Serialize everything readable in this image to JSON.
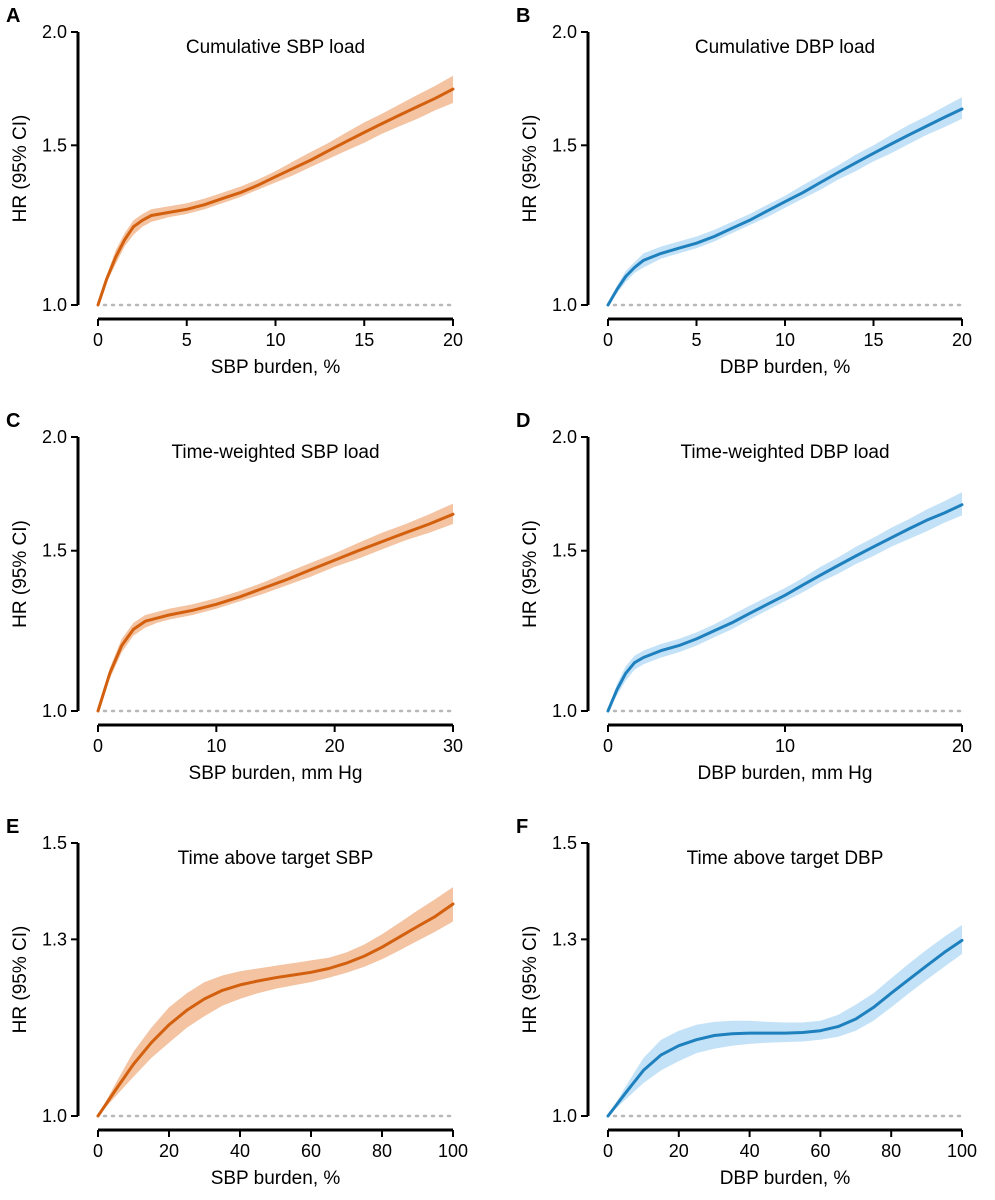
{
  "figure": {
    "colors": {
      "sbp_line": "#D2600F",
      "sbp_band": "#F4C3A1",
      "dbp_line": "#1F80BE",
      "dbp_band": "#C4E2F7",
      "ref_line": "#B8B8B8",
      "axis": "#000000"
    }
  },
  "chart_data": [
    {
      "panel": "A",
      "type": "line",
      "title": "Cumulative SBP load",
      "xlabel": "SBP burden, %",
      "ylabel": "HR (95% CI)",
      "xlim": [
        0,
        20
      ],
      "ylim": [
        1.0,
        2.0
      ],
      "xticks": [
        0,
        5,
        10,
        15,
        20
      ],
      "yticks": [
        1.0,
        1.5,
        2.0
      ],
      "ytick_labels": [
        "1.0",
        "1.5",
        "2.0"
      ],
      "yscale": "log",
      "reference_line": 1.0,
      "color": "sbp",
      "series": [
        {
          "name": "HR",
          "x": [
            0,
            0.5,
            1,
            1.5,
            2,
            2.5,
            3,
            4,
            5,
            6,
            7,
            8,
            9,
            10,
            11,
            12,
            13,
            14,
            15,
            16,
            17,
            18,
            19,
            20
          ],
          "y": [
            1.0,
            1.07,
            1.13,
            1.18,
            1.22,
            1.24,
            1.255,
            1.265,
            1.275,
            1.29,
            1.31,
            1.33,
            1.355,
            1.385,
            1.415,
            1.445,
            1.48,
            1.515,
            1.55,
            1.585,
            1.62,
            1.655,
            1.69,
            1.73
          ],
          "lower": [
            1.0,
            1.06,
            1.11,
            1.16,
            1.195,
            1.22,
            1.235,
            1.25,
            1.26,
            1.275,
            1.295,
            1.315,
            1.34,
            1.365,
            1.39,
            1.42,
            1.45,
            1.48,
            1.51,
            1.545,
            1.575,
            1.605,
            1.64,
            1.67
          ],
          "upper": [
            1.0,
            1.08,
            1.15,
            1.2,
            1.24,
            1.26,
            1.275,
            1.285,
            1.295,
            1.31,
            1.33,
            1.35,
            1.375,
            1.405,
            1.44,
            1.475,
            1.51,
            1.55,
            1.59,
            1.625,
            1.665,
            1.705,
            1.745,
            1.79
          ]
        }
      ]
    },
    {
      "panel": "B",
      "type": "line",
      "title": "Cumulative DBP load",
      "xlabel": "DBP burden, %",
      "ylabel": "HR (95% CI)",
      "xlim": [
        0,
        20
      ],
      "ylim": [
        1.0,
        2.0
      ],
      "xticks": [
        0,
        5,
        10,
        15,
        20
      ],
      "yticks": [
        1.0,
        1.5,
        2.0
      ],
      "ytick_labels": [
        "1.0",
        "1.5",
        "2.0"
      ],
      "yscale": "log",
      "reference_line": 1.0,
      "color": "dbp",
      "series": [
        {
          "name": "HR",
          "x": [
            0,
            0.5,
            1,
            1.5,
            2,
            3,
            4,
            5,
            6,
            7,
            8,
            9,
            10,
            11,
            12,
            13,
            14,
            15,
            16,
            17,
            18,
            19,
            20
          ],
          "y": [
            1.0,
            1.04,
            1.075,
            1.1,
            1.12,
            1.14,
            1.155,
            1.17,
            1.19,
            1.215,
            1.24,
            1.27,
            1.3,
            1.33,
            1.365,
            1.4,
            1.435,
            1.47,
            1.505,
            1.54,
            1.575,
            1.61,
            1.645
          ],
          "lower": [
            1.0,
            1.03,
            1.06,
            1.085,
            1.1,
            1.125,
            1.14,
            1.155,
            1.175,
            1.2,
            1.225,
            1.25,
            1.28,
            1.31,
            1.34,
            1.375,
            1.405,
            1.44,
            1.47,
            1.505,
            1.54,
            1.57,
            1.605
          ],
          "upper": [
            1.0,
            1.05,
            1.09,
            1.115,
            1.14,
            1.16,
            1.175,
            1.19,
            1.21,
            1.235,
            1.26,
            1.29,
            1.32,
            1.355,
            1.39,
            1.425,
            1.465,
            1.5,
            1.54,
            1.58,
            1.615,
            1.655,
            1.695
          ]
        }
      ]
    },
    {
      "panel": "C",
      "type": "line",
      "title": "Time-weighted SBP load",
      "xlabel": "SBP burden, mm Hg",
      "ylabel": "HR (95% CI)",
      "xlim": [
        0,
        30
      ],
      "ylim": [
        1.0,
        2.0
      ],
      "xticks": [
        0,
        10,
        20,
        30
      ],
      "yticks": [
        1.0,
        1.5,
        2.0
      ],
      "ytick_labels": [
        "1.0",
        "1.5",
        "2.0"
      ],
      "yscale": "log",
      "reference_line": 1.0,
      "color": "sbp",
      "series": [
        {
          "name": "HR",
          "x": [
            0,
            1,
            2,
            3,
            4,
            5,
            6,
            8,
            10,
            12,
            14,
            16,
            18,
            20,
            22,
            24,
            26,
            28,
            30
          ],
          "y": [
            1.0,
            1.1,
            1.18,
            1.23,
            1.255,
            1.265,
            1.275,
            1.29,
            1.31,
            1.335,
            1.365,
            1.395,
            1.43,
            1.465,
            1.5,
            1.535,
            1.57,
            1.605,
            1.645
          ],
          "lower": [
            1.0,
            1.085,
            1.16,
            1.21,
            1.235,
            1.25,
            1.26,
            1.275,
            1.295,
            1.32,
            1.345,
            1.375,
            1.405,
            1.44,
            1.47,
            1.505,
            1.54,
            1.57,
            1.605
          ],
          "upper": [
            1.0,
            1.115,
            1.2,
            1.25,
            1.275,
            1.285,
            1.295,
            1.31,
            1.33,
            1.355,
            1.385,
            1.42,
            1.455,
            1.49,
            1.53,
            1.57,
            1.605,
            1.645,
            1.69
          ]
        }
      ]
    },
    {
      "panel": "D",
      "type": "line",
      "title": "Time-weighted DBP load",
      "xlabel": "DBP burden, mm Hg",
      "ylabel": "HR (95% CI)",
      "xlim": [
        0,
        20
      ],
      "ylim": [
        1.0,
        2.0
      ],
      "xticks": [
        0,
        10,
        20
      ],
      "yticks": [
        1.0,
        1.5,
        2.0
      ],
      "ytick_labels": [
        "1.0",
        "1.5",
        "2.0"
      ],
      "yscale": "log",
      "reference_line": 1.0,
      "color": "dbp",
      "series": [
        {
          "name": "HR",
          "x": [
            0,
            0.5,
            1,
            1.5,
            2,
            3,
            4,
            5,
            6,
            7,
            8,
            9,
            10,
            11,
            12,
            13,
            14,
            15,
            16,
            17,
            18,
            19,
            20
          ],
          "y": [
            1.0,
            1.055,
            1.1,
            1.13,
            1.145,
            1.165,
            1.18,
            1.2,
            1.225,
            1.25,
            1.28,
            1.31,
            1.34,
            1.375,
            1.41,
            1.445,
            1.48,
            1.515,
            1.55,
            1.585,
            1.62,
            1.65,
            1.685
          ],
          "lower": [
            1.0,
            1.04,
            1.08,
            1.11,
            1.125,
            1.145,
            1.16,
            1.18,
            1.205,
            1.23,
            1.26,
            1.29,
            1.32,
            1.35,
            1.385,
            1.415,
            1.45,
            1.48,
            1.515,
            1.545,
            1.575,
            1.61,
            1.64
          ],
          "upper": [
            1.0,
            1.07,
            1.12,
            1.15,
            1.165,
            1.185,
            1.2,
            1.22,
            1.245,
            1.275,
            1.305,
            1.335,
            1.365,
            1.4,
            1.44,
            1.475,
            1.515,
            1.55,
            1.59,
            1.625,
            1.665,
            1.7,
            1.74
          ]
        }
      ]
    },
    {
      "panel": "E",
      "type": "line",
      "title": "Time above target SBP",
      "xlabel": "SBP burden, %",
      "ylabel": "HR (95% CI)",
      "xlim": [
        0,
        100
      ],
      "ylim": [
        1.0,
        1.5
      ],
      "xticks": [
        0,
        20,
        40,
        60,
        80,
        100
      ],
      "yticks": [
        1.0,
        1.3,
        1.5
      ],
      "ytick_labels": [
        "1.0",
        "1.3",
        "1.5"
      ],
      "yscale": "log",
      "reference_line": 1.0,
      "color": "sbp",
      "series": [
        {
          "name": "HR",
          "x": [
            0,
            5,
            10,
            15,
            20,
            25,
            30,
            35,
            40,
            45,
            50,
            55,
            60,
            65,
            70,
            75,
            80,
            85,
            90,
            95,
            100
          ],
          "y": [
            1.0,
            1.04,
            1.08,
            1.115,
            1.145,
            1.17,
            1.19,
            1.205,
            1.215,
            1.222,
            1.228,
            1.233,
            1.238,
            1.245,
            1.255,
            1.268,
            1.285,
            1.305,
            1.325,
            1.345,
            1.37
          ],
          "lower": [
            1.0,
            1.03,
            1.06,
            1.09,
            1.115,
            1.14,
            1.16,
            1.178,
            1.19,
            1.2,
            1.208,
            1.214,
            1.22,
            1.228,
            1.237,
            1.248,
            1.262,
            1.279,
            1.297,
            1.315,
            1.335
          ],
          "upper": [
            1.0,
            1.05,
            1.1,
            1.14,
            1.175,
            1.2,
            1.22,
            1.232,
            1.24,
            1.245,
            1.25,
            1.255,
            1.26,
            1.265,
            1.275,
            1.29,
            1.31,
            1.333,
            1.357,
            1.38,
            1.405
          ]
        }
      ]
    },
    {
      "panel": "F",
      "type": "line",
      "title": "Time above target DBP",
      "xlabel": "DBP burden, %",
      "ylabel": "HR (95% CI)",
      "xlim": [
        0,
        100
      ],
      "ylim": [
        1.0,
        1.5
      ],
      "xticks": [
        0,
        20,
        40,
        60,
        80,
        100
      ],
      "yticks": [
        1.0,
        1.3,
        1.5
      ],
      "ytick_labels": [
        "1.0",
        "1.3",
        "1.5"
      ],
      "yscale": "log",
      "reference_line": 1.0,
      "color": "dbp",
      "series": [
        {
          "name": "HR",
          "x": [
            0,
            5,
            10,
            15,
            20,
            25,
            30,
            35,
            40,
            45,
            50,
            55,
            60,
            65,
            70,
            75,
            80,
            85,
            90,
            95,
            100
          ],
          "y": [
            1.0,
            1.035,
            1.07,
            1.095,
            1.11,
            1.12,
            1.127,
            1.13,
            1.131,
            1.131,
            1.131,
            1.132,
            1.135,
            1.142,
            1.155,
            1.175,
            1.2,
            1.225,
            1.25,
            1.275,
            1.298
          ],
          "lower": [
            1.0,
            1.025,
            1.05,
            1.07,
            1.085,
            1.098,
            1.105,
            1.11,
            1.113,
            1.115,
            1.116,
            1.117,
            1.12,
            1.125,
            1.135,
            1.152,
            1.175,
            1.2,
            1.224,
            1.248,
            1.272
          ],
          "upper": [
            1.0,
            1.045,
            1.09,
            1.12,
            1.135,
            1.145,
            1.15,
            1.152,
            1.152,
            1.15,
            1.149,
            1.149,
            1.152,
            1.162,
            1.18,
            1.2,
            1.227,
            1.254,
            1.28,
            1.305,
            1.328
          ]
        }
      ]
    }
  ]
}
